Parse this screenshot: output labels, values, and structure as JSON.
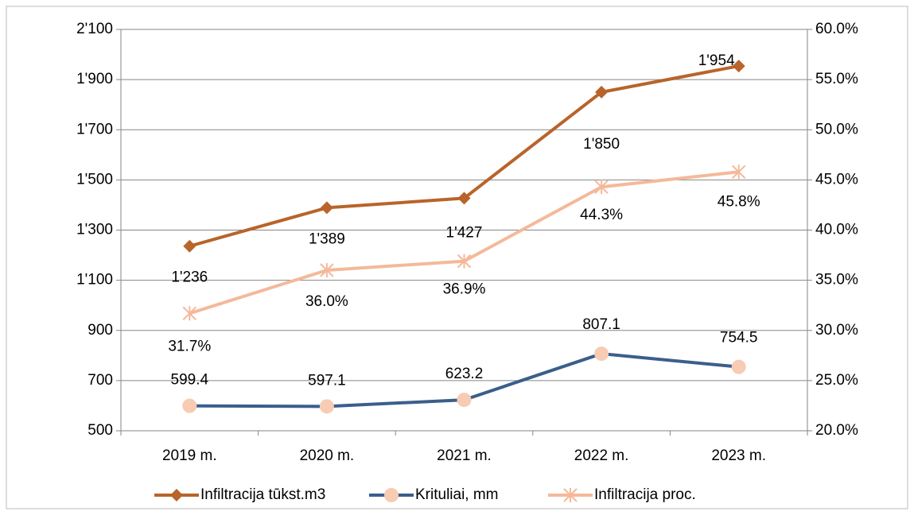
{
  "chart_data": {
    "type": "line",
    "categories": [
      "2019 m.",
      "2020 m.",
      "2021 m.",
      "2022 m.",
      "2023 m."
    ],
    "series": [
      {
        "name": "Infiltracija tūkst.m3",
        "color": "#b8642a",
        "marker": "diamond",
        "marker_color": "#b8642a",
        "values": [
          1236,
          1389,
          1427,
          1850,
          1954
        ],
        "value_labels": [
          "1'236",
          "1'389",
          "1'427",
          "1'850",
          "1'954"
        ]
      },
      {
        "name": "Krituliai, mm",
        "color": "#3b5e8c",
        "marker": "circle",
        "marker_color": "#f8cbb3",
        "values": [
          599.4,
          597.1,
          623.2,
          807.1,
          754.5
        ]
      },
      {
        "name": "Infiltracija  proc.",
        "color": "#f4b99a",
        "marker": "asterisk",
        "marker_color": "#f4b99a",
        "axis": "y2",
        "values": [
          31.7,
          36.0,
          36.9,
          44.3,
          45.8
        ],
        "value_labels": [
          "31.7%",
          "36.0%",
          "36.9%",
          "44.3%",
          "45.8%"
        ]
      }
    ],
    "ylim": [
      500,
      2100
    ],
    "yticks": [
      500,
      700,
      900,
      {
        "value": 1100,
        "label": "1'100"
      },
      {
        "value": 1300,
        "label": "1'300"
      },
      {
        "value": 1500,
        "label": "1'500"
      },
      {
        "value": 1700,
        "label": "1'700"
      },
      {
        "value": 1900,
        "label": "1'900"
      },
      {
        "value": 2100,
        "label": "2'100"
      }
    ],
    "y2lim": [
      20,
      60
    ],
    "y2ticks": [
      {
        "value": 20,
        "label": "20.0%"
      },
      {
        "value": 25,
        "label": "25.0%"
      },
      {
        "value": 30,
        "label": "30.0%"
      },
      {
        "value": 35,
        "label": "35.0%"
      },
      {
        "value": 40,
        "label": "40.0%"
      },
      {
        "value": 45,
        "label": "45.0%"
      },
      {
        "value": 50,
        "label": "50.0%"
      },
      {
        "value": 55,
        "label": "55.0%"
      },
      {
        "value": 60,
        "label": "60.0%"
      }
    ],
    "grid": true,
    "legend": "bottom"
  }
}
